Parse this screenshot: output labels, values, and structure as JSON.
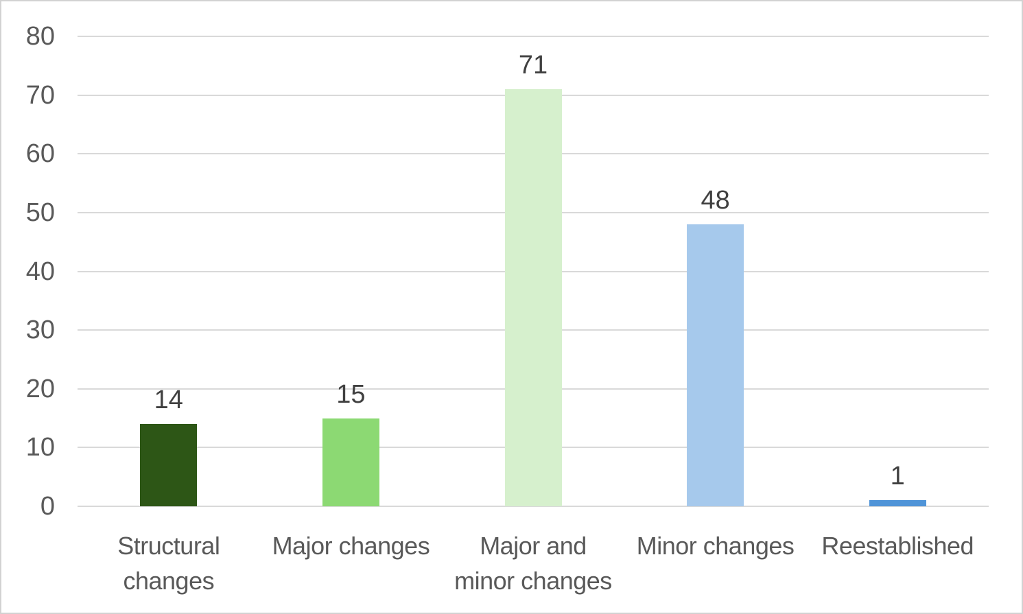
{
  "chart_data": {
    "type": "bar",
    "categories": [
      "Structural changes",
      "Major changes",
      "Major and minor changes",
      "Minor changes",
      "Reestablished"
    ],
    "category_lines": [
      [
        "Structural",
        "changes"
      ],
      [
        "Major changes"
      ],
      [
        "Major and",
        "minor changes"
      ],
      [
        "Minor changes"
      ],
      [
        "Reestablished"
      ]
    ],
    "values": [
      14,
      15,
      71,
      48,
      1
    ],
    "data_labels": [
      "14",
      "15",
      "71",
      "48",
      "1"
    ],
    "bar_colors": [
      "#2d5616",
      "#8cd973",
      "#d6f0cd",
      "#a6c9ec",
      "#4f94d8"
    ],
    "y_axis": {
      "min": 0,
      "max": 80,
      "step": 10,
      "ticks": [
        "0",
        "10",
        "20",
        "30",
        "40",
        "50",
        "60",
        "70",
        "80"
      ]
    },
    "grid": true,
    "legend": "none",
    "colors": {
      "gridline": "#d9d9d9",
      "axis_text": "#595959",
      "data_label_text": "#404040",
      "background": "#ffffff",
      "border": "#d2d2d2"
    }
  }
}
